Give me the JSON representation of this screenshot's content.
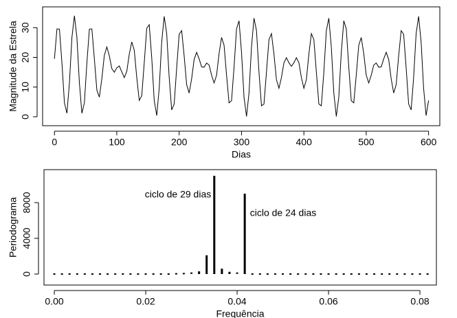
{
  "chart_data": [
    {
      "type": "line",
      "xlabel": "Dias",
      "ylabel": "Magnitude da Estrela",
      "color": "#000000",
      "x": [
        0,
        4,
        8,
        12,
        16,
        20,
        24,
        28,
        32,
        36,
        40,
        44,
        48,
        52,
        56,
        60,
        64,
        68,
        72,
        76,
        80,
        84,
        88,
        92,
        96,
        100,
        104,
        108,
        112,
        116,
        120,
        124,
        128,
        132,
        136,
        140,
        144,
        148,
        152,
        156,
        160,
        164,
        168,
        172,
        176,
        180,
        184,
        188,
        192,
        196,
        200,
        204,
        208,
        212,
        216,
        220,
        224,
        228,
        232,
        236,
        240,
        244,
        248,
        252,
        256,
        260,
        264,
        268,
        272,
        276,
        280,
        284,
        288,
        292,
        296,
        300,
        304,
        308,
        312,
        316,
        320,
        324,
        328,
        332,
        336,
        340,
        344,
        348,
        352,
        356,
        360,
        364,
        368,
        372,
        376,
        380,
        384,
        388,
        392,
        396,
        400,
        404,
        408,
        412,
        416,
        420,
        424,
        428,
        432,
        436,
        440,
        444,
        448,
        452,
        456,
        460,
        464,
        468,
        472,
        476,
        480,
        484,
        488,
        492,
        496,
        500,
        504,
        508,
        512,
        516,
        520,
        524,
        528,
        532,
        536,
        540,
        544,
        548,
        552,
        556,
        560,
        564,
        568,
        572,
        576,
        580,
        584,
        588,
        592,
        596,
        600
      ],
      "values": [
        19.5,
        29.6,
        29.5,
        18.1,
        4.7,
        1.2,
        11.4,
        26.7,
        34.0,
        26.7,
        11.4,
        1.2,
        4.7,
        18.1,
        29.5,
        29.6,
        19.5,
        9.0,
        6.6,
        12.8,
        20.7,
        23.5,
        20.5,
        16.2,
        15.0,
        16.5,
        17.1,
        15.1,
        13.2,
        15.3,
        21.1,
        25.2,
        22.4,
        13.2,
        5.5,
        7.1,
        18.2,
        29.8,
        31.0,
        19.9,
        5.5,
        0.4,
        9.6,
        25.2,
        33.8,
        28.0,
        13.2,
        2.3,
        4.3,
        16.5,
        27.8,
        29.0,
        20.5,
        10.8,
        8.0,
        12.8,
        19.3,
        21.7,
        19.5,
        16.8,
        16.7,
        18.1,
        17.4,
        14.0,
        11.4,
        14.0,
        21.3,
        26.7,
        24.1,
        14.0,
        4.7,
        5.4,
        16.7,
        29.6,
        32.3,
        21.7,
        6.6,
        0.1,
        8.0,
        23.5,
        33.2,
        29.0,
        15.0,
        3.7,
        4.3,
        15.1,
        26.0,
        28.0,
        21.1,
        12.5,
        9.6,
        13.2,
        18.2,
        19.9,
        18.2,
        17.0,
        18.2,
        19.9,
        18.2,
        13.2,
        9.6,
        12.5,
        21.1,
        28.0,
        26.0,
        15.1,
        4.3,
        3.7,
        15.0,
        29.0,
        33.2,
        23.5,
        8.0,
        0.1,
        6.6,
        21.7,
        32.3,
        29.6,
        16.7,
        5.4,
        4.7,
        14.0,
        24.1,
        26.7,
        21.3,
        14.0,
        11.4,
        14.0,
        17.4,
        18.1,
        16.7,
        16.8,
        19.5,
        21.7,
        19.3,
        12.8,
        8.0,
        10.8,
        20.5,
        29.0,
        27.8,
        16.5,
        4.3,
        2.3,
        13.2,
        28.0,
        33.8,
        25.2,
        9.6,
        0.4,
        5.5
      ],
      "xlim": [
        -19,
        618
      ],
      "ylim": [
        -3,
        37
      ],
      "xticks": [
        0,
        100,
        200,
        300,
        400,
        500,
        600
      ],
      "yticks": [
        0,
        10,
        20,
        30
      ]
    },
    {
      "type": "spike",
      "xlabel": "Frequência",
      "ylabel": "Periodograma",
      "color": "#000000",
      "x": [
        0,
        0.00167,
        0.00333,
        0.005,
        0.00667,
        0.00833,
        0.01,
        0.01167,
        0.01333,
        0.015,
        0.01667,
        0.01833,
        0.02,
        0.02167,
        0.02333,
        0.025,
        0.02667,
        0.02833,
        0.03,
        0.03167,
        0.03333,
        0.035,
        0.03667,
        0.03833,
        0.04,
        0.04167,
        0.04333,
        0.045,
        0.04667,
        0.04833,
        0.05,
        0.05167,
        0.05333,
        0.055,
        0.05667,
        0.05833,
        0.06,
        0.06167,
        0.06333,
        0.065,
        0.06667,
        0.06833,
        0.07,
        0.07167,
        0.07333,
        0.075,
        0.07667,
        0.07833,
        0.08,
        0.08167
      ],
      "values": [
        0,
        0,
        0,
        0,
        0,
        0,
        0,
        0,
        0,
        0,
        0,
        0,
        0,
        0,
        0,
        0,
        30,
        50,
        100,
        300,
        2100,
        11000,
        600,
        250,
        100,
        9000,
        0,
        0,
        0,
        0,
        0,
        0,
        0,
        0,
        0,
        0,
        0,
        0,
        0,
        0,
        0,
        0,
        0,
        0,
        0,
        0,
        0,
        0,
        0,
        0
      ],
      "xlim": [
        -0.00226,
        0.0836
      ],
      "ylim": [
        -1230,
        11690
      ],
      "xticks": [
        {
          "value": 0,
          "label": "0.00"
        },
        0.02,
        0.04,
        0.06,
        0.08
      ],
      "yticks": [
        0,
        4000,
        8000
      ],
      "annotations": [
        "ciclo de 29 dias",
        "ciclo de 24 dias"
      ]
    }
  ]
}
